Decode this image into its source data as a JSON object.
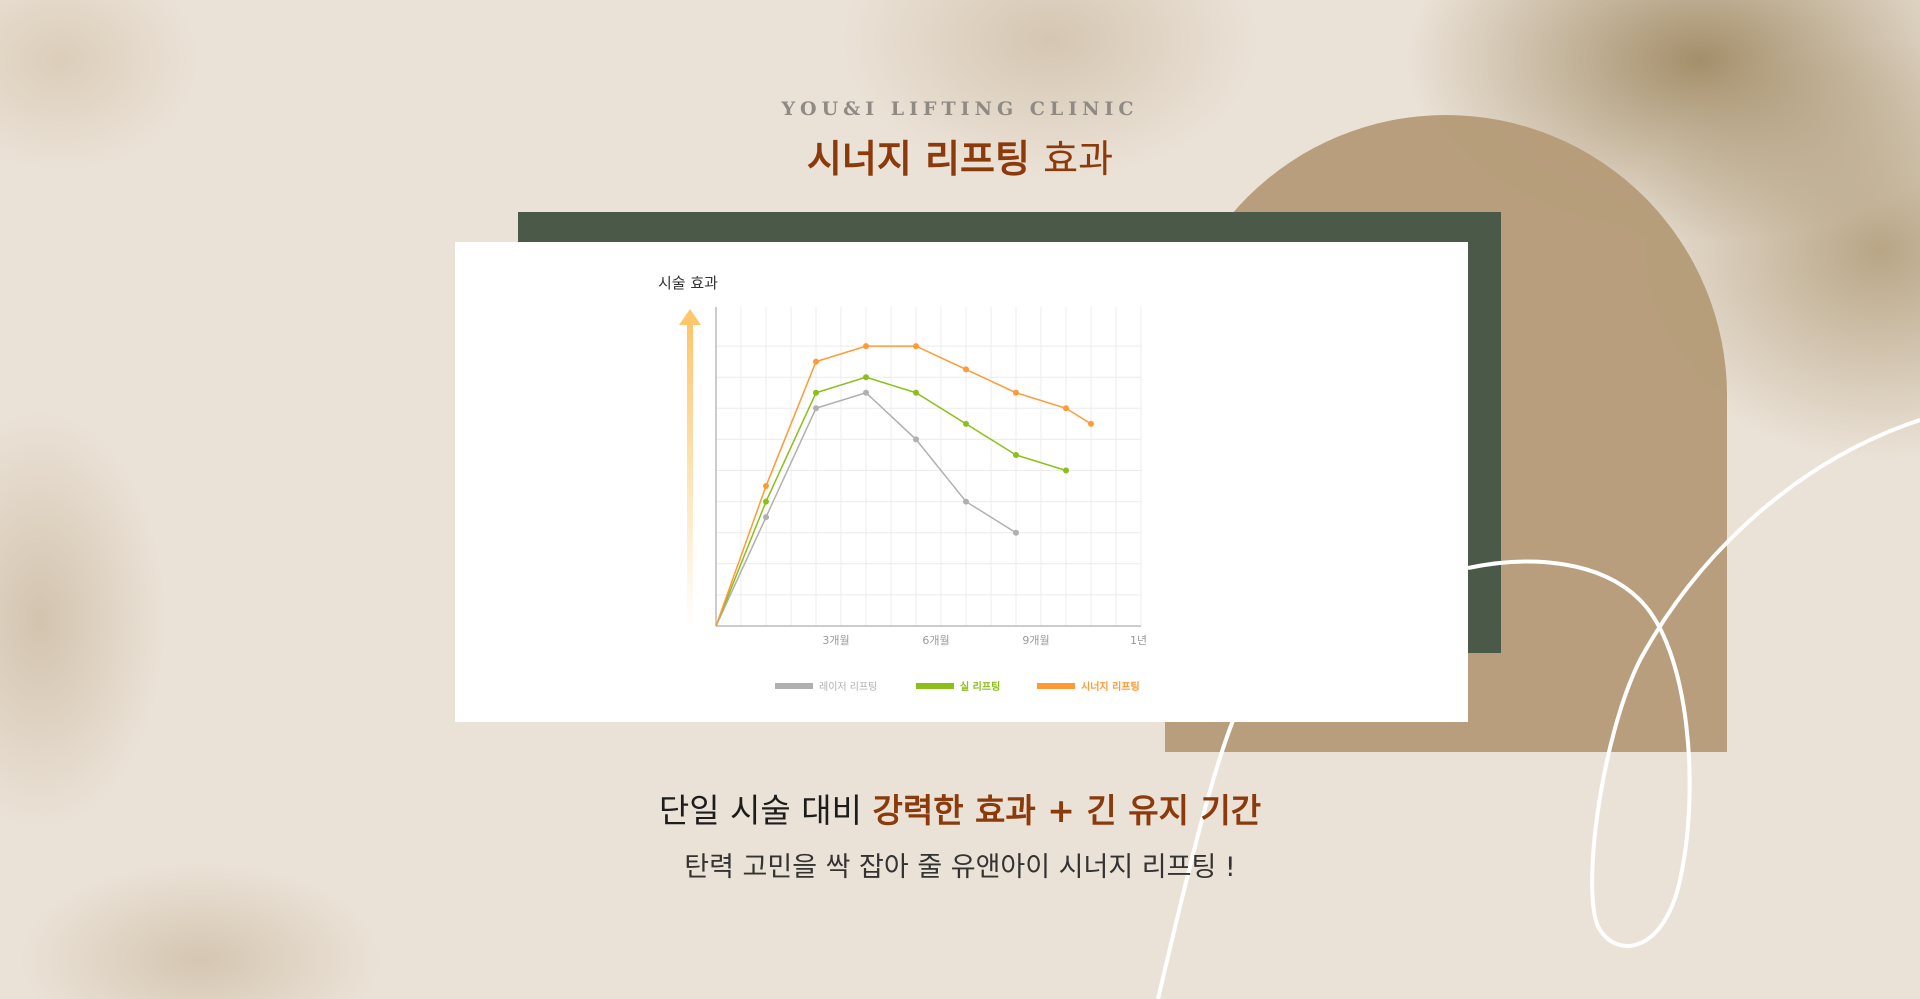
{
  "header": {
    "eyebrow": "YOU&I LIFTING CLINIC",
    "title_bold": "시너지 리프팅",
    "title_light": "효과"
  },
  "chart_data": {
    "type": "line",
    "ylabel": "시술 효과",
    "x_ticks": [
      {
        "pos": 4.8,
        "label": "3개월"
      },
      {
        "pos": 8.8,
        "label": "6개월"
      },
      {
        "pos": 12.8,
        "label": "9개월"
      },
      {
        "pos": 16.9,
        "label": "1년"
      }
    ],
    "xlim": [
      0,
      17
    ],
    "ylim": [
      0,
      10
    ],
    "grid": true,
    "legend": "bottom",
    "series": [
      {
        "name": "레이저 리프팅",
        "color": "#b0b0b0",
        "x": [
          0,
          2,
          4,
          6,
          8,
          10,
          12
        ],
        "values": [
          0,
          3.5,
          7,
          7.5,
          6,
          4,
          3
        ]
      },
      {
        "name": "실 리프팅",
        "color": "#8cbf1a",
        "x": [
          0,
          2,
          4,
          6,
          8,
          10,
          12,
          14
        ],
        "values": [
          0,
          4,
          7.5,
          8,
          7.5,
          6.5,
          5.5,
          5
        ]
      },
      {
        "name": "시너지 리프팅",
        "color": "#ff9a35",
        "x": [
          0,
          2,
          4,
          6,
          8,
          10,
          12,
          14,
          15
        ],
        "values": [
          0,
          4.5,
          8.5,
          9,
          9,
          8.25,
          7.5,
          7,
          6.5
        ]
      }
    ]
  },
  "footer": {
    "line1_plain": "단일 시술 대비",
    "line1_bold": "강력한 효과 + 긴 유지 기간",
    "line2": "탄력 고민을 싹 잡아 줄 유앤아이 시너지 리프팅 !"
  },
  "colors": {
    "accent": "#8b3a0c",
    "panel": "#4b5a48",
    "arch": "#b59b78",
    "background": "#ebe2d7"
  }
}
